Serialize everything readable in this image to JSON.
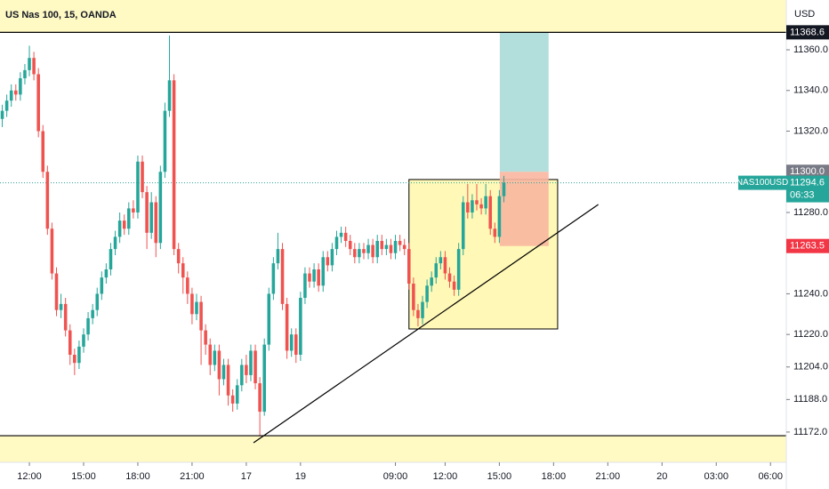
{
  "chart_data": {
    "type": "candlestick",
    "title": "US Nas 100, 15, OANDA",
    "currency": "USD",
    "symbol": "NAS100USD",
    "countdown": "06:33",
    "up_color": "#26a69a",
    "down_color": "#ef5350",
    "ylim": [
      11157.1,
      11384.5
    ],
    "yticks": [
      {
        "value": 11172,
        "label": "11172.0"
      },
      {
        "value": 11188,
        "label": "11188.0"
      },
      {
        "value": 11204,
        "label": "11204.0"
      },
      {
        "value": 11220,
        "label": "11220.0"
      },
      {
        "value": 11240,
        "label": "11240.0"
      },
      {
        "value": 11280,
        "label": "11280.0"
      },
      {
        "value": 11320,
        "label": "11320.0"
      },
      {
        "value": 11340,
        "label": "11340.0"
      },
      {
        "value": 11360,
        "label": "11360.0"
      }
    ],
    "xlim": [
      -0.5,
      173.5
    ],
    "xticks": [
      {
        "value": 6,
        "label": "12:00"
      },
      {
        "value": 18,
        "label": "15:00"
      },
      {
        "value": 30,
        "label": "18:00"
      },
      {
        "value": 42,
        "label": "21:00"
      },
      {
        "value": 54,
        "label": "17"
      },
      {
        "value": 66,
        "label": "19"
      },
      {
        "value": 87,
        "label": "09:00"
      },
      {
        "value": 98,
        "label": "12:00"
      },
      {
        "value": 110,
        "label": "15:00"
      },
      {
        "value": 122,
        "label": "18:00"
      },
      {
        "value": 134,
        "label": "21:00"
      },
      {
        "value": 146,
        "label": "20"
      },
      {
        "value": 158,
        "label": "03:00"
      },
      {
        "value": 170,
        "label": "06:00"
      }
    ],
    "open": [
      11326,
      11330,
      11335,
      11340,
      11338,
      11346,
      11350,
      11356,
      11348,
      11320,
      11300,
      11272,
      11250,
      11232,
      11235,
      11222,
      11210,
      11206,
      11214,
      11220,
      11228,
      11232,
      11240,
      11248,
      11252,
      11262,
      11268,
      11276,
      11272,
      11282,
      11280,
      11305,
      11290,
      11270,
      11285,
      11265,
      11300,
      11330,
      11345,
      11262,
      11255,
      11248,
      11240,
      11230,
      11236,
      11222,
      11215,
      11205,
      11212,
      11198,
      11205,
      11190,
      11186,
      11195,
      11205,
      11200,
      11212,
      11196,
      11182,
      11215,
      11240,
      11255,
      11262,
      11235,
      11212,
      11220,
      11210,
      11238,
      11250,
      11246,
      11252,
      11244,
      11258,
      11254,
      11262,
      11268,
      11270,
      11266,
      11262,
      11258,
      11262,
      11260,
      11264,
      11258,
      11266,
      11262,
      11264,
      11260,
      11266,
      11264,
      11262,
      11245,
      11232,
      11228,
      11236,
      11244,
      11248,
      11255,
      11258,
      11250,
      11246,
      11242,
      11262,
      11285,
      11280,
      11286,
      11284,
      11282,
      11288,
      11272,
      11268,
      11288
    ],
    "high": [
      11333,
      11338,
      11343,
      11343,
      11349,
      11353,
      11362,
      11359,
      11351,
      11323,
      11303,
      11275,
      11253,
      11240,
      11238,
      11225,
      11213,
      11217,
      11223,
      11231,
      11235,
      11243,
      11251,
      11255,
      11265,
      11271,
      11280,
      11279,
      11285,
      11286,
      11308,
      11308,
      11293,
      11290,
      11288,
      11303,
      11334,
      11367,
      11348,
      11265,
      11258,
      11251,
      11243,
      11240,
      11239,
      11225,
      11218,
      11215,
      11215,
      11208,
      11208,
      11193,
      11198,
      11208,
      11210,
      11215,
      11215,
      11199,
      11218,
      11243,
      11258,
      11270,
      11265,
      11238,
      11223,
      11223,
      11241,
      11253,
      11253,
      11255,
      11255,
      11261,
      11261,
      11265,
      11271,
      11273,
      11273,
      11269,
      11265,
      11265,
      11265,
      11267,
      11267,
      11269,
      11269,
      11267,
      11267,
      11269,
      11269,
      11267,
      11265,
      11248,
      11235,
      11239,
      11247,
      11251,
      11258,
      11261,
      11261,
      11253,
      11249,
      11265,
      11288,
      11294,
      11289,
      11294,
      11287,
      11294,
      11291,
      11275,
      11291,
      11298
    ],
    "low": [
      11322,
      11327,
      11332,
      11335,
      11335,
      11343,
      11347,
      11345,
      11317,
      11297,
      11269,
      11247,
      11229,
      11228,
      11219,
      11205,
      11200,
      11203,
      11211,
      11217,
      11225,
      11229,
      11237,
      11245,
      11249,
      11259,
      11265,
      11269,
      11269,
      11277,
      11277,
      11287,
      11262,
      11267,
      11258,
      11262,
      11297,
      11327,
      11259,
      11250,
      11240,
      11235,
      11225,
      11227,
      11205,
      11210,
      11200,
      11202,
      11190,
      11195,
      11185,
      11182,
      11183,
      11192,
      11196,
      11197,
      11193,
      11170,
      11180,
      11212,
      11237,
      11252,
      11232,
      11208,
      11209,
      11206,
      11207,
      11235,
      11243,
      11243,
      11241,
      11241,
      11251,
      11251,
      11259,
      11265,
      11263,
      11259,
      11255,
      11255,
      11257,
      11257,
      11255,
      11255,
      11259,
      11259,
      11257,
      11257,
      11261,
      11259,
      11242,
      11229,
      11224,
      11225,
      11233,
      11241,
      11245,
      11252,
      11247,
      11243,
      11239,
      11239,
      11259,
      11277,
      11277,
      11281,
      11279,
      11279,
      11269,
      11265,
      11265,
      11285
    ],
    "close": [
      11330,
      11335,
      11340,
      11338,
      11346,
      11350,
      11356,
      11348,
      11320,
      11300,
      11272,
      11250,
      11232,
      11235,
      11222,
      11210,
      11206,
      11214,
      11220,
      11228,
      11232,
      11240,
      11248,
      11252,
      11262,
      11268,
      11276,
      11272,
      11282,
      11280,
      11305,
      11290,
      11270,
      11285,
      11265,
      11300,
      11330,
      11345,
      11262,
      11255,
      11248,
      11240,
      11230,
      11236,
      11222,
      11215,
      11205,
      11212,
      11198,
      11205,
      11190,
      11186,
      11195,
      11205,
      11200,
      11212,
      11196,
      11182,
      11215,
      11240,
      11255,
      11262,
      11235,
      11212,
      11220,
      11210,
      11238,
      11250,
      11246,
      11252,
      11244,
      11258,
      11254,
      11262,
      11268,
      11270,
      11266,
      11262,
      11258,
      11262,
      11260,
      11264,
      11258,
      11266,
      11262,
      11264,
      11260,
      11266,
      11264,
      11262,
      11245,
      11232,
      11228,
      11236,
      11244,
      11248,
      11255,
      11258,
      11250,
      11246,
      11242,
      11262,
      11285,
      11280,
      11286,
      11284,
      11282,
      11288,
      11272,
      11268,
      11288,
      11294.6
    ],
    "drawings": {
      "hlines": [
        11368.6,
        11170.2
      ],
      "box": {
        "x": [
          90,
          122.9
        ],
        "y": [
          11222.7,
          11296.2
        ]
      },
      "trendline": {
        "x": [
          55.6,
          131.9
        ],
        "y": [
          11166.7,
          11283.9
        ]
      },
      "position": {
        "x": [
          110.1,
          120.9
        ],
        "entry": 11300,
        "target": 11368.6,
        "stop": 11263.5
      }
    },
    "price_tags": [
      {
        "value": 11368.6,
        "label": "11368.6",
        "color": "#131722"
      },
      {
        "value": 11300,
        "label": "11300.0",
        "color": "#787b86"
      },
      {
        "value": 11294.6,
        "label": "11294.6",
        "color": "#26a69a"
      },
      {
        "value": 11263.5,
        "label": "11263.5",
        "color": "#f23645"
      }
    ]
  }
}
